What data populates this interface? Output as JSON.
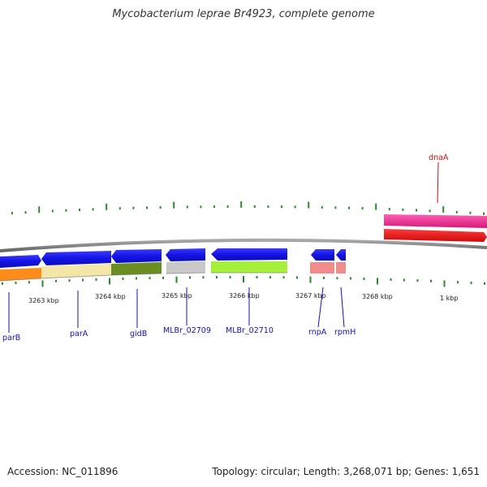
{
  "title": "Mycobacterium leprae Br4923, complete genome",
  "footer": {
    "accession": "Accession: NC_011896",
    "topology": "Topology: circular; Length: 3,268,071 bp; Genes: 1,651"
  },
  "colors": {
    "backbone": "#888888",
    "tick": "#2a8a2a",
    "gene_arrow": "#1414e6",
    "label_blue": "#1010b0",
    "label_red": "#cc1111",
    "dnaA_outer": "#e8208a",
    "dnaA_inner": "#ee1111"
  },
  "position_labels": [
    {
      "text": "3263 kbp"
    },
    {
      "text": "3264 kbp"
    },
    {
      "text": "3265 kbp"
    },
    {
      "text": "3266 kbp"
    },
    {
      "text": "3267 kbp"
    },
    {
      "text": "3268 kbp"
    },
    {
      "text": "1 kbp"
    }
  ],
  "genes": [
    {
      "name": "parB",
      "color": "#1010b0"
    },
    {
      "name": "parA",
      "color": "#1010b0"
    },
    {
      "name": "gidB",
      "color": "#1010b0"
    },
    {
      "name": "MLBr_02709",
      "color": "#1010b0"
    },
    {
      "name": "MLBr_02710",
      "color": "#1010b0"
    },
    {
      "name": "rnpA",
      "color": "#1010b0"
    },
    {
      "name": "rpmH",
      "color": "#1010b0"
    },
    {
      "name": "dnaA",
      "color": "#cc1111"
    }
  ],
  "category_track": [
    {
      "gene": "parB",
      "color": "#ff8c1a"
    },
    {
      "gene": "parA",
      "color": "#f3e6a6"
    },
    {
      "gene": "gidB",
      "color": "#6b8e23"
    },
    {
      "gene": "MLBr_02709",
      "color": "#c8c8c8"
    },
    {
      "gene": "MLBr_02710",
      "color": "#a6f03c"
    },
    {
      "gene": "rnpA",
      "color": "#f08c8c"
    },
    {
      "gene": "rpmH",
      "color": "#f08c8c"
    }
  ]
}
